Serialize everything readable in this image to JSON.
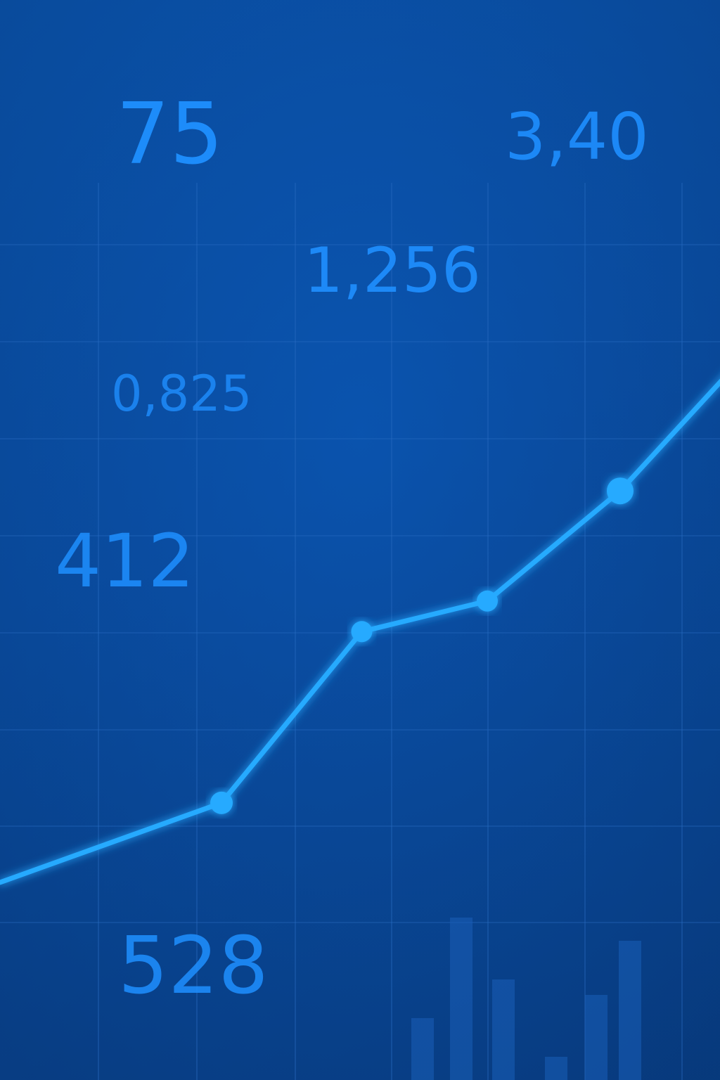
{
  "colors": {
    "background": "#0a4ea3",
    "line": "#25aaff",
    "text": "#1f8fff",
    "grid": "#2b6cc4",
    "bars": "#1a5fb8"
  },
  "chart_data": {
    "type": "line",
    "grid": true,
    "title": "",
    "xlabel": "",
    "ylabel": "",
    "series": [
      {
        "points": [
          {
            "x": 0.0,
            "y": 0.0
          },
          {
            "x": 0.3,
            "y": 0.13
          },
          {
            "x": 0.49,
            "y": 0.41
          },
          {
            "x": 0.66,
            "y": 0.46
          },
          {
            "x": 0.84,
            "y": 0.64
          },
          {
            "x": 1.0,
            "y": 0.85
          }
        ],
        "markers": [
          1,
          2,
          3,
          4
        ]
      }
    ],
    "background_bars": [
      0.08,
      0.21,
      0.13,
      0.03,
      0.11,
      0.18
    ],
    "annotations": [
      "75",
      "3,40",
      "1,256",
      "0,825",
      "412",
      "528"
    ]
  }
}
